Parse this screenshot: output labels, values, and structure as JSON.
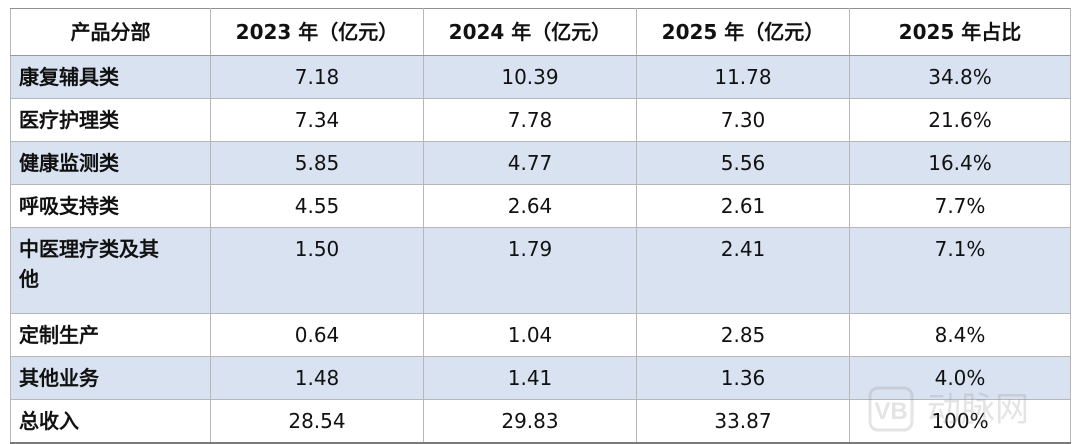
{
  "table": {
    "headers": [
      "产品分部",
      "2023 年（亿元）",
      "2024 年（亿元）",
      "2025 年（亿元）",
      "2025 年占比"
    ],
    "rows": [
      {
        "label": "康复辅具类",
        "y2023": "7.18",
        "y2024": "10.39",
        "y2025": "11.78",
        "share": "34.8%"
      },
      {
        "label": "医疗护理类",
        "y2023": "7.34",
        "y2024": "7.78",
        "y2025": "7.30",
        "share": "21.6%"
      },
      {
        "label": "健康监测类",
        "y2023": "5.85",
        "y2024": "4.77",
        "y2025": "5.56",
        "share": "16.4%"
      },
      {
        "label": "呼吸支持类",
        "y2023": "4.55",
        "y2024": "2.64",
        "y2025": "2.61",
        "share": "7.7%"
      },
      {
        "label_line1": "中医理疗类及其",
        "label_line2": "他",
        "y2023": "1.50",
        "y2024": "1.79",
        "y2025": "2.41",
        "share": "7.1%"
      },
      {
        "label": "定制生产",
        "y2023": "0.64",
        "y2024": "1.04",
        "y2025": "2.85",
        "share": "8.4%"
      },
      {
        "label": "其他业务",
        "y2023": "1.48",
        "y2024": "1.41",
        "y2025": "1.36",
        "share": "4.0%"
      },
      {
        "label": "总收入",
        "y2023": "28.54",
        "y2024": "29.83",
        "y2025": "33.87",
        "share": "100%"
      }
    ]
  },
  "watermark": {
    "text": "动脉网"
  },
  "colors": {
    "row_shade": "#d9e2f1",
    "border": "#b7b7b7"
  }
}
